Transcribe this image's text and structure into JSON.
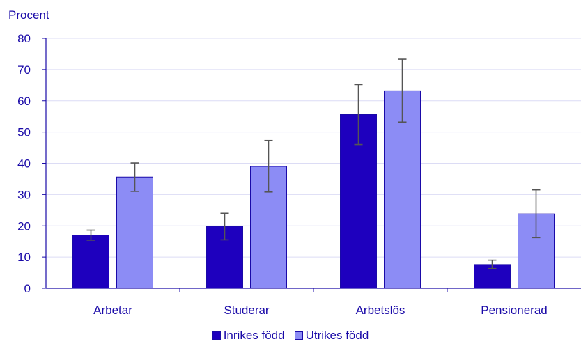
{
  "chart_data": {
    "type": "bar",
    "ylabel": "Procent",
    "ylim": [
      0,
      80
    ],
    "ytick_step": 10,
    "yticks": [
      "0",
      "10",
      "20",
      "30",
      "40",
      "50",
      "60",
      "70",
      "80"
    ],
    "grid": true,
    "legend_position": "bottom-center",
    "categories": [
      "Arbetar",
      "Studerar",
      "Arbetslös",
      "Pensionerad"
    ],
    "series": [
      {
        "name": "Inrikes född",
        "color": "#1e00be",
        "values": [
          17,
          19.8,
          55.6,
          7.6
        ],
        "error_low": [
          15.4,
          15.5,
          46,
          6.3
        ],
        "error_high": [
          18.6,
          24,
          65.2,
          9
        ]
      },
      {
        "name": "Utrikes född",
        "color": "#8c8cf5",
        "values": [
          35.6,
          39,
          63.2,
          23.8
        ],
        "error_low": [
          31,
          30.8,
          53.2,
          16.2
        ],
        "error_high": [
          40.1,
          47.3,
          73.3,
          31.5
        ]
      }
    ],
    "colors": {
      "text": "#1a0aa8",
      "axis": "#1a0aa8",
      "grid": "#dcdcf5",
      "error_bar": "#555555"
    }
  }
}
